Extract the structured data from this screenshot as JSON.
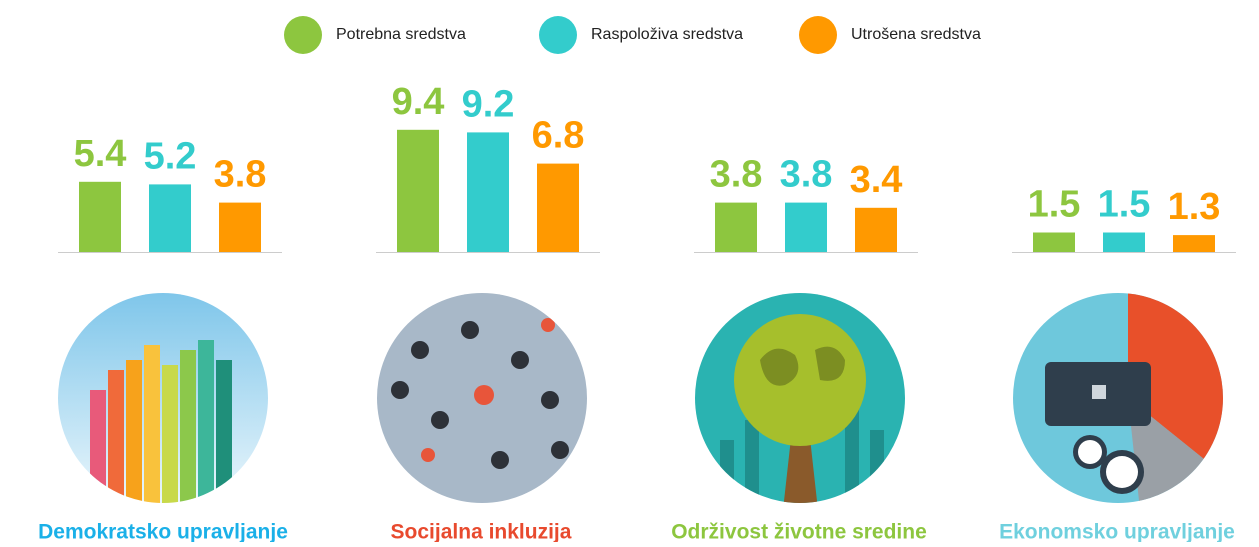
{
  "legend": [
    {
      "name": "Potrebna sredstva",
      "color": "#8dc63f"
    },
    {
      "name": "Raspoloživa sredstva",
      "color": "#33cccc"
    },
    {
      "name": "Utrošena sredstva",
      "color": "#ff9900"
    }
  ],
  "chart_data": [
    {
      "type": "bar",
      "title": "Demokratsko upravljanje",
      "title_color": "#1ab0e8",
      "values": [
        5.4,
        5.2,
        3.8
      ]
    },
    {
      "type": "bar",
      "title": "Socijalna inkluzija",
      "title_color": "#e84a2e",
      "values": [
        9.4,
        9.2,
        6.8
      ]
    },
    {
      "type": "bar",
      "title": "Održivost životne sredine",
      "title_color": "#8dc63f",
      "values": [
        3.8,
        3.8,
        3.4
      ]
    },
    {
      "type": "bar",
      "title": "Ekonomsko upravljanje",
      "title_color": "#6fd0de",
      "values": [
        1.5,
        1.5,
        1.3
      ]
    }
  ]
}
